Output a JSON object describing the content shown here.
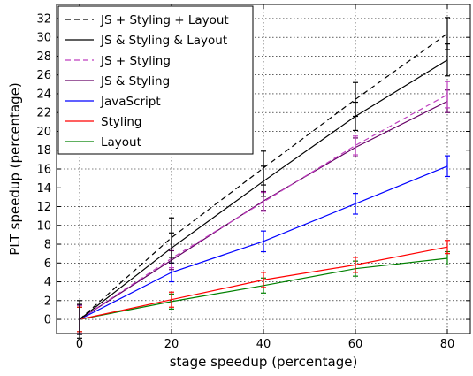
{
  "chart_data": {
    "type": "line",
    "xlabel": "stage speedup (percentage)",
    "ylabel": "PLT speedup (percentage)",
    "xlim": [
      -5,
      85
    ],
    "ylim": [
      -1.5,
      33.5
    ],
    "x_ticks": [
      0,
      20,
      40,
      60,
      80
    ],
    "y_ticks": [
      0,
      2,
      4,
      6,
      8,
      10,
      12,
      14,
      16,
      18,
      20,
      22,
      24,
      26,
      28,
      30,
      32
    ],
    "grid": true,
    "legend_position": "top-left",
    "x": [
      0,
      20,
      40,
      60,
      80
    ],
    "series": [
      {
        "name": "JS + Styling + Layout",
        "color": "#000000",
        "dashed": true,
        "values": [
          0,
          8.7,
          16.1,
          23.4,
          30.4
        ],
        "err": [
          2.0,
          2.1,
          1.8,
          1.8,
          1.7
        ]
      },
      {
        "name": "JS & Styling & Layout",
        "color": "#000000",
        "dashed": false,
        "values": [
          0,
          7.6,
          14.7,
          21.6,
          27.6
        ],
        "err": [
          1.6,
          1.6,
          1.6,
          1.5,
          1.7
        ]
      },
      {
        "name": "JS + Styling",
        "color": "#bf3fbf",
        "dashed": true,
        "values": [
          0,
          6.5,
          12.5,
          18.5,
          23.9
        ],
        "err": [
          1.5,
          1.0,
          1.0,
          1.0,
          1.4
        ]
      },
      {
        "name": "JS & Styling",
        "color": "#660066",
        "dashed": false,
        "values": [
          0,
          6.3,
          12.6,
          18.3,
          23.2
        ],
        "err": [
          1.5,
          1.0,
          1.0,
          1.0,
          1.2
        ]
      },
      {
        "name": "JavaScript",
        "color": "#0000ff",
        "dashed": false,
        "values": [
          0,
          5.0,
          8.3,
          12.3,
          16.3
        ],
        "err": [
          1.5,
          1.0,
          1.1,
          1.1,
          1.1
        ]
      },
      {
        "name": "Styling",
        "color": "#ff0000",
        "dashed": false,
        "values": [
          0,
          2.1,
          4.2,
          5.8,
          7.7
        ],
        "err": [
          1.3,
          0.8,
          0.8,
          0.8,
          0.7
        ]
      },
      {
        "name": "Layout",
        "color": "#008000",
        "dashed": false,
        "values": [
          0,
          1.9,
          3.6,
          5.4,
          6.5
        ],
        "err": [
          1.3,
          0.8,
          0.8,
          0.8,
          0.7
        ]
      }
    ]
  }
}
